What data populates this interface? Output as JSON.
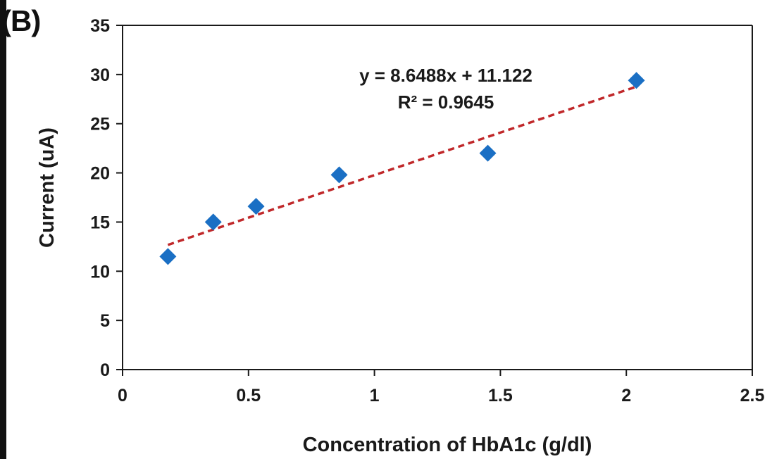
{
  "panel_label": "(B)",
  "chart_data": {
    "type": "scatter",
    "xlabel": "Concentration of HbA1c (g/dl)",
    "ylabel": "Current (uA)",
    "xlim": [
      0,
      2.5
    ],
    "ylim": [
      0,
      35
    ],
    "xticks": [
      "0",
      "0.5",
      "1",
      "1.5",
      "2",
      "2.5"
    ],
    "yticks": [
      "0",
      "5",
      "10",
      "15",
      "20",
      "25",
      "30",
      "35"
    ],
    "xtick_values": [
      0,
      0.5,
      1,
      1.5,
      2,
      2.5
    ],
    "ytick_values": [
      0,
      5,
      10,
      15,
      20,
      25,
      30,
      35
    ],
    "grid": false,
    "series": [
      {
        "marker": "diamond",
        "color": "#1a6fc4",
        "x": [
          0.18,
          0.36,
          0.53,
          0.86,
          1.45,
          2.04
        ],
        "y": [
          11.5,
          15.0,
          16.6,
          19.8,
          22.0,
          29.4
        ]
      }
    ],
    "trendline": {
      "style": "dashed",
      "color": "#c0282a",
      "slope": 8.6488,
      "intercept": 11.122,
      "x_range": [
        0.18,
        2.04
      ]
    },
    "annotations": [
      "y = 8.6488x + 11.122",
      "R² = 0.9645"
    ]
  }
}
